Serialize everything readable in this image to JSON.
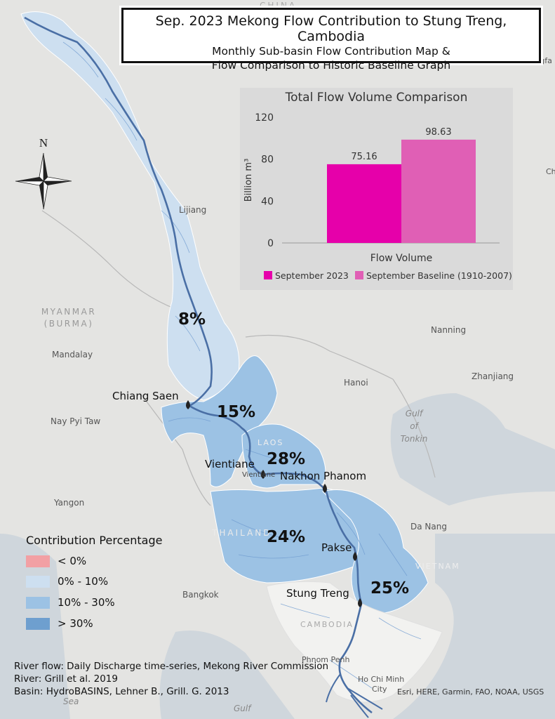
{
  "title": {
    "line1": "Sep. 2023 Mekong Flow Contribution to Stung Treng, Cambodia",
    "line2": "Monthly Sub-basin Flow Contribution Map &",
    "line3": "Flow Comparison to Historic Baseline Graph"
  },
  "compass": {
    "north_label": "N",
    "icon": "compass-rose-icon"
  },
  "basemap_labels": {
    "china": "CHINA",
    "xiangfa": "Xiangfa",
    "ch": "Ch",
    "myanmar": "MYANMAR",
    "burma": "(BURMA)",
    "mandalay": "Mandalay",
    "nay_pyi_taw": "Nay Pyi Taw",
    "yangon": "Yangon",
    "lijiang": "Lijiang",
    "nanning": "Nanning",
    "hanoi": "Hanoi",
    "zhanjiang": "Zhanjiang",
    "gulf_of_tonkin": [
      "Gulf",
      "of",
      "Tonkin"
    ],
    "laos": "LAOS",
    "thailand": "THAILAND",
    "vietnam": "VIETNAM",
    "cambodia": "CAMBODIA",
    "da_nang": "Da Nang",
    "bangkok": "Bangkok",
    "phnom_penh": "Phnom Penh",
    "ho_chi_minh_1": "Ho Chi Minh",
    "ho_chi_minh_2": "City",
    "sea": "Sea",
    "gulf": "Gulf",
    "vientiane_small": "Vientiane"
  },
  "stations": {
    "chiang_saen": "Chiang Saen",
    "vientiane": "Vientiane",
    "nakhon_phanom": "Nakhon Phanom",
    "pakse": "Pakse",
    "stung_treng": "Stung Treng"
  },
  "subbasin_percentages": {
    "upper": "8%",
    "chiang_saen_vientiane": "15%",
    "vientiane_nakhon": "28%",
    "nakhon_pakse": "24%",
    "pakse_stung_treng": "25%"
  },
  "colors": {
    "neg": "#f2a0a4",
    "low": "#cddff0",
    "mid": "#9cc2e4",
    "high": "#6e9fcf",
    "river": "#4a6fa5",
    "bar_2023": "#e600aa",
    "bar_baseline": "#e05fb5"
  },
  "chart_data": {
    "type": "bar",
    "title": "Total Flow Volume Comparison",
    "categories": [
      "Flow Volume"
    ],
    "series": [
      {
        "name": "September 2023",
        "values": [
          75.16
        ]
      },
      {
        "name": "September Baseline (1910-2007)",
        "values": [
          98.63
        ]
      }
    ],
    "xlabel": "Flow Volume",
    "ylabel": "Billion m³",
    "yticks": [
      "0",
      "40",
      "80",
      "120"
    ],
    "ylim": [
      0,
      120
    ],
    "legend": "bottom"
  },
  "legend": {
    "title": "Contribution Percentage",
    "items": [
      {
        "label": "< 0%"
      },
      {
        "label": "0% - 10%"
      },
      {
        "label": "10% - 30%"
      },
      {
        "label": "> 30%"
      }
    ]
  },
  "credits": {
    "line1": "River flow: Daily Discharge time-series, Mekong River Commission",
    "line2": "River: Grill et al. 2019",
    "line3": "Basin: HydroBASINS, Lehner B., Grill. G. 2013"
  },
  "attribution": "Esri, HERE, Garmin, FAO, NOAA, USGS"
}
